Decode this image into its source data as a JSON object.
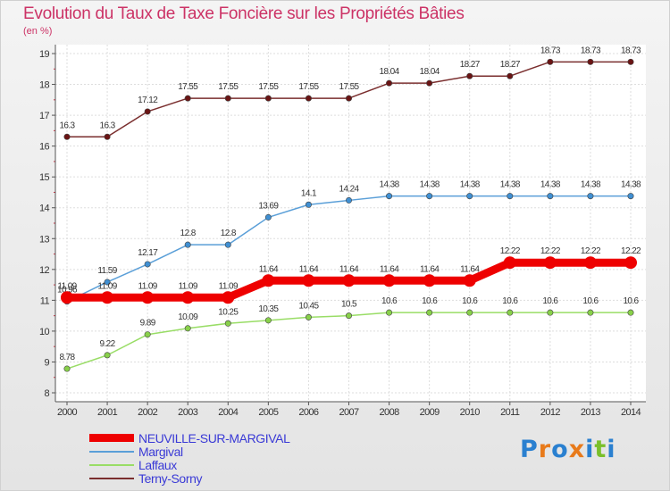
{
  "title": "Evolution du Taux de Taxe Foncière sur les Propriétés Bâties",
  "subtitle": "(en %)",
  "logo": {
    "letters": [
      "P",
      "r",
      "o",
      "x",
      "i",
      "t",
      "i"
    ],
    "colors": [
      "#2a80d0",
      "#e87a1a",
      "#2a80d0",
      "#e87a1a",
      "#2a80d0",
      "#7abf2a",
      "#2a80d0"
    ]
  },
  "chart_data": {
    "type": "line",
    "title": "Evolution du Taux de Taxe Foncière sur les Propriétés Bâties",
    "ylabel": "(en %)",
    "xlabel": "",
    "ylim": [
      8,
      19
    ],
    "yticks": [
      8,
      9,
      10,
      11,
      12,
      13,
      14,
      15,
      16,
      17,
      18,
      19
    ],
    "x": [
      "2000",
      "2001",
      "2002",
      "2003",
      "2004",
      "2005",
      "2006",
      "2007",
      "2008",
      "2009",
      "2010",
      "2011",
      "2012",
      "2013",
      "2014"
    ],
    "grid": true,
    "series": [
      {
        "name": "Terny-Sorny",
        "color": "#7a2e2e",
        "marker": "#6a1414",
        "values": [
          16.3,
          16.3,
          17.12,
          17.55,
          17.55,
          17.55,
          17.55,
          17.55,
          18.04,
          18.04,
          18.27,
          18.27,
          18.73,
          18.73,
          18.73
        ],
        "labels": [
          "16.3",
          "16.3",
          "17.12",
          "17.55",
          "17.55",
          "17.55",
          "17.55",
          "17.55",
          "18.04",
          "18.04",
          "18.27",
          "18.27",
          "18.73",
          "18.73",
          "18.73"
        ]
      },
      {
        "name": "Margival",
        "color": "#5a9fd8",
        "marker": "#3f8fd2",
        "values": [
          10.96,
          11.59,
          12.17,
          12.8,
          12.8,
          13.69,
          14.1,
          14.24,
          14.38,
          14.38,
          14.38,
          14.38,
          14.38,
          14.38,
          14.38
        ],
        "labels": [
          "10.96",
          "11.59",
          "12.17",
          "12.8",
          "12.8",
          "13.69",
          "14.1",
          "14.24",
          "14.38",
          "14.38",
          "14.38",
          "14.38",
          "14.38",
          "14.38",
          "14.38"
        ]
      },
      {
        "name": "Laffaux",
        "color": "#99dd66",
        "marker": "#88d04a",
        "values": [
          8.78,
          9.22,
          9.89,
          10.09,
          10.25,
          10.35,
          10.45,
          10.5,
          10.6,
          10.6,
          10.6,
          10.6,
          10.6,
          10.6,
          10.6
        ],
        "labels": [
          "8.78",
          "9.22",
          "9.89",
          "10.09",
          "10.25",
          "10.35",
          "10.45",
          "10.5",
          "10.6",
          "10.6",
          "10.6",
          "10.6",
          "10.6",
          "10.6",
          "10.6"
        ]
      },
      {
        "name": "NEUVILLE-SUR-MARGIVAL",
        "color": "#ee0000",
        "marker": "#ee0000",
        "values": [
          11.09,
          11.09,
          11.09,
          11.09,
          11.09,
          11.64,
          11.64,
          11.64,
          11.64,
          11.64,
          11.64,
          12.22,
          12.22,
          12.22,
          12.22
        ],
        "labels": [
          "11.09",
          "11.09",
          "11.09",
          "11.09",
          "11.09",
          "11.64",
          "11.64",
          "11.64",
          "11.64",
          "11.64",
          "11.64",
          "12.22",
          "12.22",
          "12.22",
          "12.22"
        ]
      }
    ],
    "legend": [
      "NEUVILLE-SUR-MARGIVAL",
      "Margival",
      "Laffaux",
      "Terny-Sorny"
    ],
    "legend_position": "bottom-left"
  }
}
